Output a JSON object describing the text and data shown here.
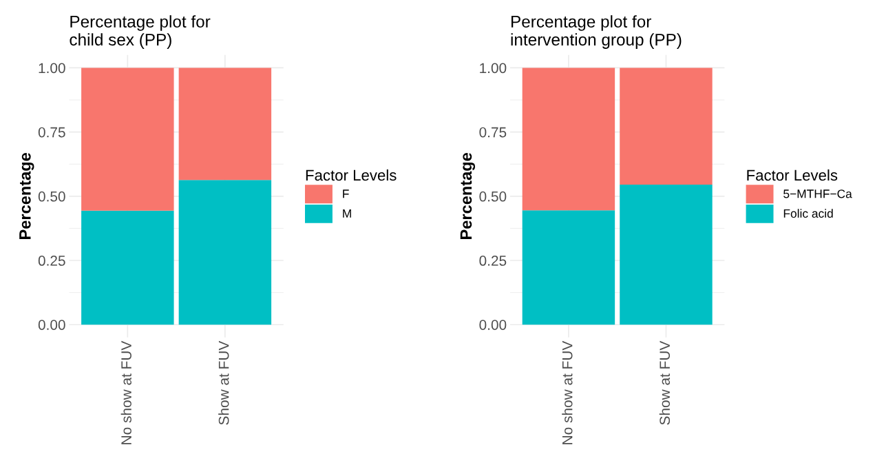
{
  "chart_data": [
    {
      "type": "bar",
      "title": "Percentage plot for\nchild sex (PP)",
      "ylabel": "Percentage",
      "legend_title": "Factor Levels",
      "categories": [
        "No show at FUV",
        "Show at FUV"
      ],
      "stacked": true,
      "ylim": [
        -0.05,
        1.05
      ],
      "yticks": [
        {
          "value": 0,
          "label": "0.00"
        },
        {
          "value": 0.25,
          "label": "0.25"
        },
        {
          "value": 0.5,
          "label": "0.50"
        },
        {
          "value": 0.75,
          "label": "0.75"
        },
        {
          "value": 1,
          "label": "1.00"
        }
      ],
      "grid": true,
      "legend": "right",
      "series": [
        {
          "name": "M",
          "color": "#00bfc4",
          "values": [
            0.444,
            0.563
          ]
        },
        {
          "name": "F",
          "color": "#f8766d",
          "values": [
            0.556,
            0.437
          ]
        }
      ]
    },
    {
      "type": "bar",
      "title": "Percentage plot for\nintervention group (PP)",
      "ylabel": "Percentage",
      "legend_title": "Factor Levels",
      "categories": [
        "No show at FUV",
        "Show at FUV"
      ],
      "stacked": true,
      "ylim": [
        -0.05,
        1.05
      ],
      "yticks": [
        {
          "value": 0,
          "label": "0.00"
        },
        {
          "value": 0.25,
          "label": "0.25"
        },
        {
          "value": 0.5,
          "label": "0.50"
        },
        {
          "value": 0.75,
          "label": "0.75"
        },
        {
          "value": 1,
          "label": "1.00"
        }
      ],
      "grid": true,
      "legend": "right",
      "series": [
        {
          "name": "Folic acid",
          "color": "#00bfc4",
          "values": [
            0.445,
            0.545
          ]
        },
        {
          "name": "5−MTHF−Ca",
          "color": "#f8766d",
          "values": [
            0.555,
            0.455
          ]
        }
      ]
    }
  ]
}
